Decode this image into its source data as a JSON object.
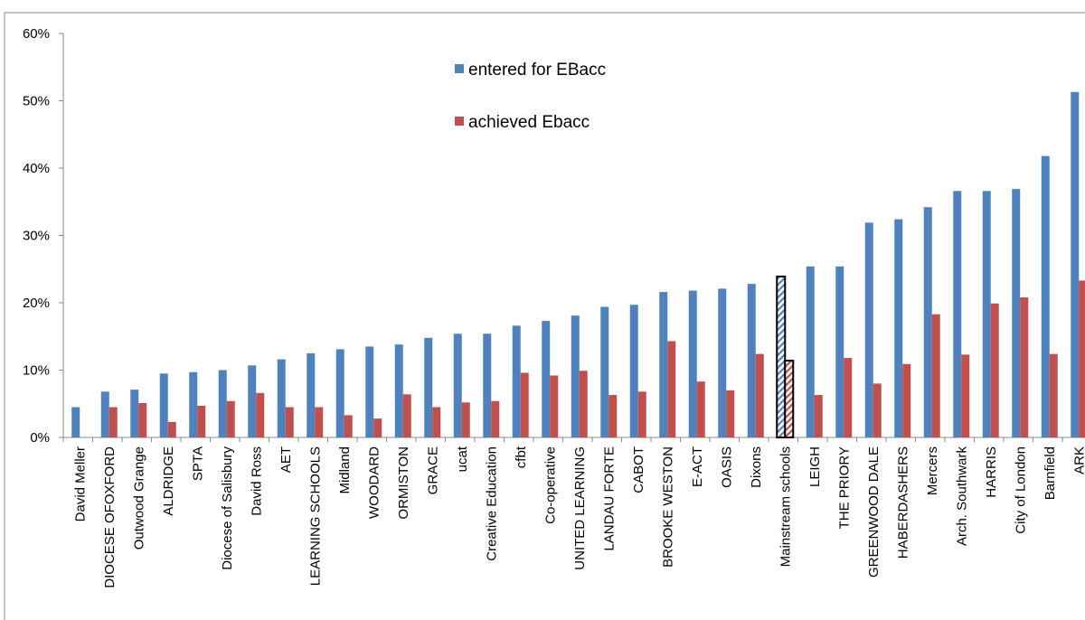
{
  "chart_data": {
    "type": "bar",
    "categories": [
      "David Meller",
      "DIOCESE OFOXFORD",
      "Outwood Grange",
      "ALDRIDGE",
      "SPTA",
      "Diocese of Salisbury",
      "David Ross",
      "AET",
      "LEARNING SCHOOLS",
      "Midland",
      "WOODARD",
      "ORMISTON",
      "GRACE",
      "ucat",
      "Creative Education",
      "cfbt",
      "Co-operative",
      "UNITED LEARNING",
      "LANDAU FORTE",
      "CABOT",
      "BROOKE WESTON",
      "E-ACT",
      "OASIS",
      "Dixons",
      "Mainstream schools",
      "LEIGH",
      "THE PRIORY",
      "GREENWOOD DALE",
      "HABERDASHERS",
      "Mercers",
      "Arch. Southwark",
      "HARRIS",
      "City of London",
      "Barnfield",
      "ARK"
    ],
    "series": [
      {
        "name": "entered for EBacc",
        "color": "#4f81bd",
        "values": [
          4.5,
          6.8,
          7.1,
          9.5,
          9.7,
          10.0,
          10.7,
          11.6,
          12.5,
          13.1,
          13.5,
          13.8,
          14.8,
          15.4,
          15.4,
          16.6,
          17.3,
          18.1,
          19.4,
          19.7,
          21.6,
          21.8,
          22.1,
          22.8,
          23.9,
          25.4,
          25.4,
          31.9,
          32.4,
          34.2,
          36.6,
          36.6,
          36.9,
          41.8,
          51.3
        ]
      },
      {
        "name": "achieved Ebacc",
        "color": "#c0504d",
        "values": [
          null,
          4.5,
          5.1,
          2.3,
          4.7,
          5.4,
          6.6,
          4.5,
          4.5,
          3.3,
          2.8,
          6.4,
          4.5,
          5.2,
          5.4,
          9.6,
          9.2,
          9.9,
          6.3,
          6.8,
          14.3,
          8.3,
          7.0,
          12.4,
          11.4,
          6.3,
          11.8,
          8.0,
          10.9,
          18.3,
          12.3,
          19.9,
          20.8,
          12.4,
          23.3
        ]
      }
    ],
    "hatched": [
      24
    ],
    "ylim": [
      0,
      60
    ],
    "yticks": [
      {
        "value": 0,
        "label": "0%"
      },
      {
        "value": 10,
        "label": "10%"
      },
      {
        "value": 20,
        "label": "20%"
      },
      {
        "value": 30,
        "label": "30%"
      },
      {
        "value": 40,
        "label": "40%"
      },
      {
        "value": 50,
        "label": "50%"
      },
      {
        "value": 60,
        "label": "60%"
      }
    ],
    "grid": false
  }
}
